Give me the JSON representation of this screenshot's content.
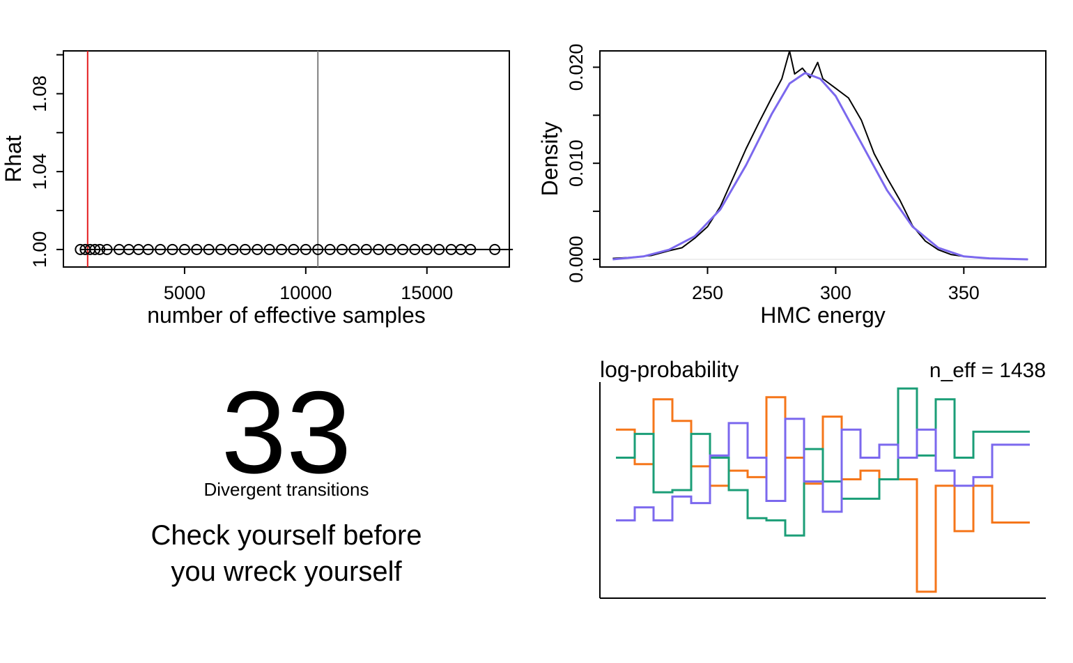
{
  "chart_data": [
    {
      "type": "scatter",
      "xlabel": "number of effective samples",
      "ylabel": "Rhat",
      "xlim": [
        0,
        18400
      ],
      "ylim": [
        0.991,
        1.102
      ],
      "x_ticks": [
        5000,
        10000,
        15000
      ],
      "y_ticks": [
        "1.00",
        "1.04",
        "1.08"
      ],
      "reference_lines": [
        {
          "x": 1000,
          "color": "#e41a1c"
        },
        {
          "x": 10500,
          "color": "#7f7f7f"
        }
      ],
      "points": [
        {
          "x": 700,
          "y": 1.0
        },
        {
          "x": 900,
          "y": 1.0
        },
        {
          "x": 1100,
          "y": 1.0
        },
        {
          "x": 1300,
          "y": 1.0
        },
        {
          "x": 1500,
          "y": 1.0
        },
        {
          "x": 1800,
          "y": 1.0
        },
        {
          "x": 2300,
          "y": 1.0
        },
        {
          "x": 2700,
          "y": 1.0
        },
        {
          "x": 3100,
          "y": 1.0
        },
        {
          "x": 3500,
          "y": 1.0
        },
        {
          "x": 4000,
          "y": 1.0
        },
        {
          "x": 4500,
          "y": 1.0
        },
        {
          "x": 5000,
          "y": 1.0
        },
        {
          "x": 5500,
          "y": 1.0
        },
        {
          "x": 6000,
          "y": 1.0
        },
        {
          "x": 6500,
          "y": 1.0
        },
        {
          "x": 7000,
          "y": 1.0
        },
        {
          "x": 7500,
          "y": 1.0
        },
        {
          "x": 8000,
          "y": 1.0
        },
        {
          "x": 8500,
          "y": 1.0
        },
        {
          "x": 9000,
          "y": 1.0
        },
        {
          "x": 9500,
          "y": 1.0
        },
        {
          "x": 10000,
          "y": 1.0
        },
        {
          "x": 10500,
          "y": 1.0
        },
        {
          "x": 11000,
          "y": 1.0
        },
        {
          "x": 11500,
          "y": 1.0
        },
        {
          "x": 12000,
          "y": 1.0
        },
        {
          "x": 12500,
          "y": 1.0
        },
        {
          "x": 13000,
          "y": 1.0
        },
        {
          "x": 13500,
          "y": 1.0
        },
        {
          "x": 14000,
          "y": 1.0
        },
        {
          "x": 14500,
          "y": 1.0
        },
        {
          "x": 15000,
          "y": 1.0
        },
        {
          "x": 15500,
          "y": 1.0
        },
        {
          "x": 16000,
          "y": 1.0
        },
        {
          "x": 16400,
          "y": 1.0
        },
        {
          "x": 16800,
          "y": 1.0
        },
        {
          "x": 17800,
          "y": 1.0
        }
      ]
    },
    {
      "type": "line",
      "xlabel": "HMC energy",
      "ylabel": "Density",
      "xlim": [
        208,
        382
      ],
      "ylim": [
        -0.0008,
        0.0217
      ],
      "x_ticks": [
        250,
        300,
        350
      ],
      "y_ticks": [
        "0.000",
        "0.010",
        "0.020"
      ],
      "series": [
        {
          "color": "#000000",
          "x": [
            213,
            220,
            228,
            235,
            240,
            245,
            250,
            255,
            260,
            265,
            270,
            275,
            279,
            282,
            284,
            287,
            290,
            293,
            295,
            300,
            305,
            310,
            315,
            320,
            325,
            330,
            335,
            340,
            345,
            350,
            360,
            375
          ],
          "y": [
            0.0001,
            0.0002,
            0.0004,
            0.0009,
            0.0012,
            0.0022,
            0.0034,
            0.0055,
            0.0085,
            0.0115,
            0.0142,
            0.0168,
            0.0188,
            0.0217,
            0.0193,
            0.0199,
            0.0189,
            0.0205,
            0.0188,
            0.0178,
            0.0168,
            0.0145,
            0.011,
            0.0085,
            0.0062,
            0.0035,
            0.0019,
            0.001,
            0.0005,
            0.0003,
            0.0001,
            0.0
          ]
        },
        {
          "color": "#7b68ee",
          "x": [
            213,
            225,
            235,
            245,
            255,
            265,
            275,
            282,
            288,
            294,
            300,
            310,
            320,
            330,
            340,
            350,
            360,
            375
          ],
          "y": [
            0.0,
            0.0003,
            0.001,
            0.0024,
            0.0052,
            0.0098,
            0.0151,
            0.0183,
            0.0194,
            0.0188,
            0.017,
            0.0121,
            0.0072,
            0.0034,
            0.0012,
            0.0003,
            0.0001,
            0.0
          ]
        }
      ]
    },
    {
      "type": "line",
      "title": "log-probability",
      "annotation": "n_eff = 1438",
      "xlim": [
        0,
        22
      ],
      "ylim": [
        0,
        10
      ],
      "series": [
        {
          "color": "#f5761a",
          "values": [
            7.8,
            6.2,
            9.2,
            8.2,
            6.1,
            5.2,
            5.9,
            5.6,
            9.3,
            6.5,
            5.3,
            8.4,
            5.5,
            5.9,
            5.5,
            5.5,
            0.3,
            5.2,
            3.1,
            5.2,
            3.5,
            3.5
          ]
        },
        {
          "color": "#1b9e77",
          "values": [
            6.5,
            7.6,
            4.9,
            5.0,
            7.6,
            6.5,
            5.0,
            3.7,
            3.6,
            2.9,
            6.9,
            5.4,
            4.6,
            4.6,
            5.5,
            9.7,
            6.6,
            9.2,
            6.5,
            7.7,
            7.7,
            7.7
          ]
        },
        {
          "color": "#7b68ee",
          "values": [
            3.6,
            4.2,
            3.6,
            4.7,
            4.4,
            6.6,
            8.1,
            6.5,
            4.5,
            8.3,
            5.4,
            4.0,
            7.8,
            6.5,
            7.1,
            6.5,
            7.8,
            5.9,
            5.2,
            5.6,
            7.1,
            7.1
          ]
        }
      ]
    }
  ],
  "divergent": {
    "count": "33",
    "label": "Divergent transitions",
    "message_line1": "Check yourself before",
    "message_line2": "you wreck yourself"
  }
}
